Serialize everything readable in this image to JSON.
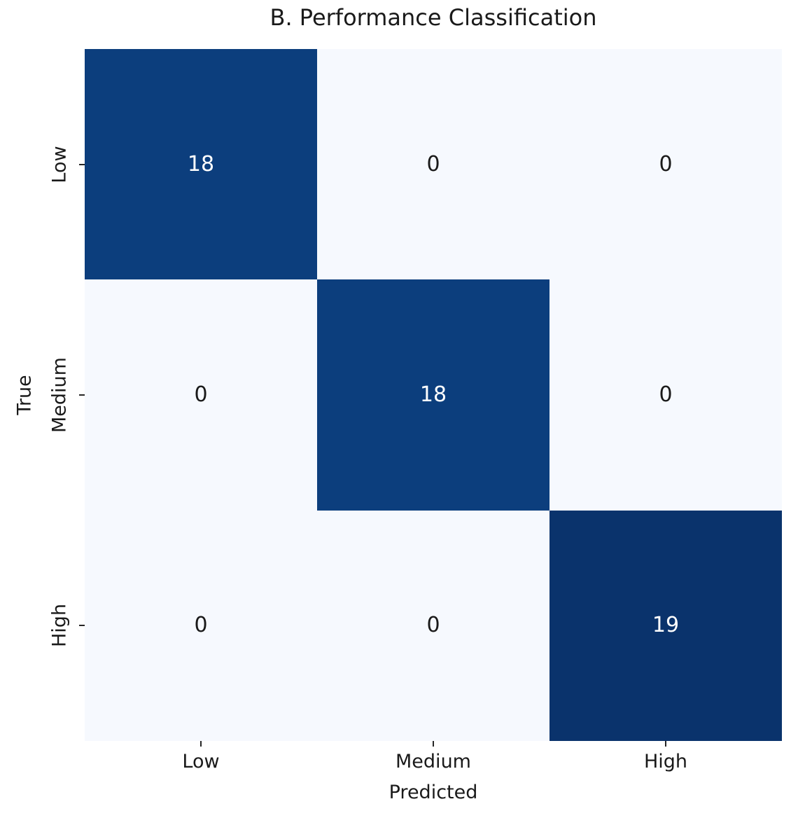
{
  "chart_data": {
    "type": "heatmap",
    "title": "B. Performance Classification",
    "xlabel": "Predicted",
    "ylabel": "True",
    "x_categories": [
      "Low",
      "Medium",
      "High"
    ],
    "y_categories": [
      "Low",
      "Medium",
      "High"
    ],
    "matrix": [
      [
        18,
        0,
        0
      ],
      [
        0,
        18,
        0
      ],
      [
        0,
        0,
        19
      ]
    ],
    "value_range": [
      0,
      19
    ],
    "colormap": "Blues",
    "legend": "none",
    "grid": false,
    "colors": {
      "value_colors": {
        "0": "#f6f9fe",
        "18": "#0c3e7d",
        "19": "#0a336c"
      },
      "annotation_on_dark": "#ffffff",
      "annotation_on_light": "#1a1a1a",
      "tick": "#262626",
      "text": "#1a1a1a"
    }
  }
}
